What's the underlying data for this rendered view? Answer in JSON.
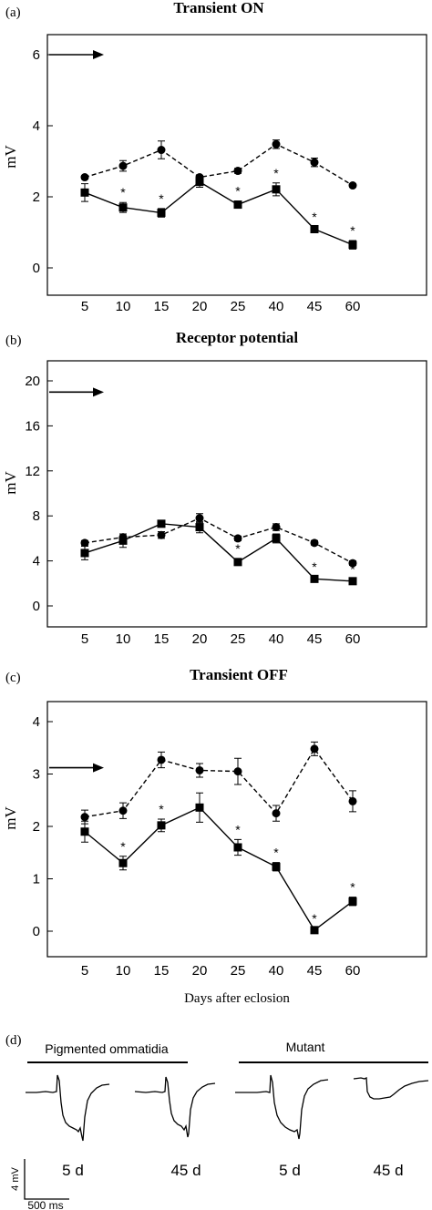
{
  "chart_data": [
    {
      "id": "a",
      "panel_label": "(a)",
      "type": "line",
      "title": "Transient ON",
      "ylabel": "mV",
      "xlabel": "",
      "categories": [
        "5",
        "10",
        "15",
        "20",
        "25",
        "40",
        "45",
        "60"
      ],
      "ylim": [
        0,
        6
      ],
      "yticks": [
        0,
        2,
        4,
        6
      ],
      "reference_arrow_value": 6,
      "series": [
        {
          "marker": "circle",
          "line": "dashed",
          "values": [
            2.55,
            2.87,
            3.32,
            2.55,
            2.73,
            3.48,
            2.97,
            2.32
          ],
          "errors": [
            0.05,
            0.15,
            0.25,
            0.05,
            0.07,
            0.12,
            0.12,
            0.05
          ]
        },
        {
          "marker": "square",
          "line": "solid",
          "values": [
            2.12,
            1.7,
            1.55,
            2.42,
            1.78,
            2.21,
            1.09,
            0.65
          ],
          "errors": [
            0.25,
            0.14,
            0.12,
            0.15,
            0.1,
            0.18,
            0.07,
            0.12
          ]
        }
      ],
      "significance": [
        "",
        "*",
        "*",
        "",
        "*",
        "*",
        "*",
        "*"
      ]
    },
    {
      "id": "b",
      "panel_label": "(b)",
      "type": "line",
      "title": "Receptor potential",
      "ylabel": "mV",
      "xlabel": "",
      "categories": [
        "5",
        "10",
        "15",
        "20",
        "25",
        "40",
        "45",
        "60"
      ],
      "ylim": [
        0,
        20
      ],
      "yticks": [
        0,
        4,
        8,
        12,
        16,
        20
      ],
      "reference_arrow_value": 19,
      "series": [
        {
          "marker": "circle",
          "line": "dashed",
          "values": [
            5.6,
            6.1,
            6.3,
            7.8,
            6.0,
            7.0,
            5.6,
            3.8
          ],
          "errors": [
            0.2,
            0.3,
            0.3,
            0.4,
            0.2,
            0.3,
            0.2,
            0.2
          ]
        },
        {
          "marker": "square",
          "line": "solid",
          "values": [
            4.7,
            5.8,
            7.3,
            7.0,
            3.9,
            6.0,
            2.4,
            2.2
          ],
          "errors": [
            0.6,
            0.6,
            0.3,
            0.5,
            0.3,
            0.4,
            0.2,
            0.2
          ]
        }
      ],
      "significance": [
        "",
        "",
        "",
        "",
        "*",
        "",
        "*",
        "*"
      ]
    },
    {
      "id": "c",
      "panel_label": "(c)",
      "type": "line",
      "title": "Transient OFF",
      "ylabel": "mV",
      "xlabel": "Days after eclosion",
      "categories": [
        "5",
        "10",
        "15",
        "20",
        "25",
        "40",
        "45",
        "60"
      ],
      "ylim": [
        0,
        4
      ],
      "yticks": [
        0,
        1,
        2,
        3,
        4
      ],
      "reference_arrow_value": 3.12,
      "series": [
        {
          "marker": "circle",
          "line": "dashed",
          "values": [
            2.18,
            2.3,
            3.27,
            3.07,
            3.05,
            2.25,
            3.48,
            2.48
          ],
          "errors": [
            0.13,
            0.15,
            0.15,
            0.13,
            0.25,
            0.15,
            0.13,
            0.2
          ]
        },
        {
          "marker": "square",
          "line": "solid",
          "values": [
            1.9,
            1.3,
            2.02,
            2.36,
            1.6,
            1.23,
            0.02,
            0.57
          ],
          "errors": [
            0.2,
            0.13,
            0.12,
            0.28,
            0.15,
            0.08,
            0.03,
            0.08
          ]
        }
      ],
      "significance": [
        "",
        "*",
        "*",
        "",
        "*",
        "*",
        "*",
        "*"
      ]
    }
  ],
  "panel_d": {
    "label": "(d)",
    "group_pigmented": "Pigmented ommatidia",
    "group_mutant": "Mutant",
    "trace_labels": [
      "5 d",
      "45 d",
      "5 d",
      "45 d"
    ],
    "scale_v": "4 mV",
    "scale_t": "500 ms"
  }
}
